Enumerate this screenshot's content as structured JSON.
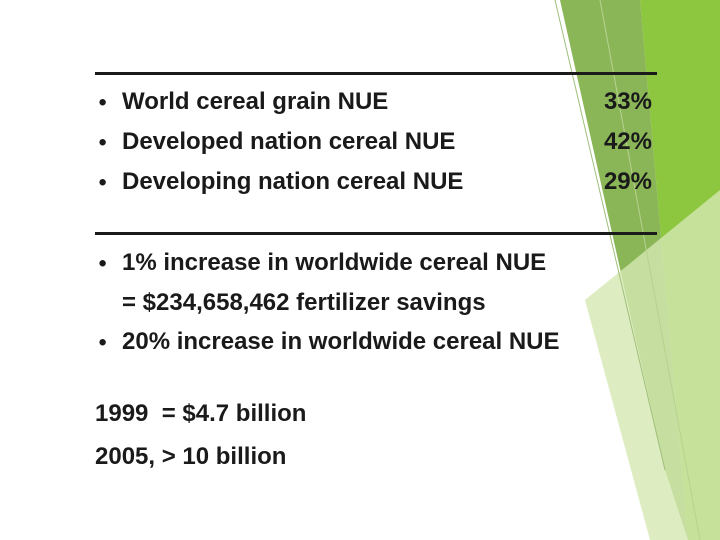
{
  "facts": [
    {
      "label": "World cereal grain NUE",
      "value": "33%"
    },
    {
      "label": "Developed nation cereal NUE",
      "value": "42%"
    },
    {
      "label": "Developing nation cereal NUE",
      "value": "29%"
    }
  ],
  "impacts": [
    [
      "1% increase in worldwide cereal NUE",
      "= $234,658,462 fertilizer savings"
    ],
    [
      "20% increase in worldwide cereal NUE"
    ]
  ],
  "notes": [
    "1999  = $4.7 billion",
    "2005, > 10 billion"
  ]
}
